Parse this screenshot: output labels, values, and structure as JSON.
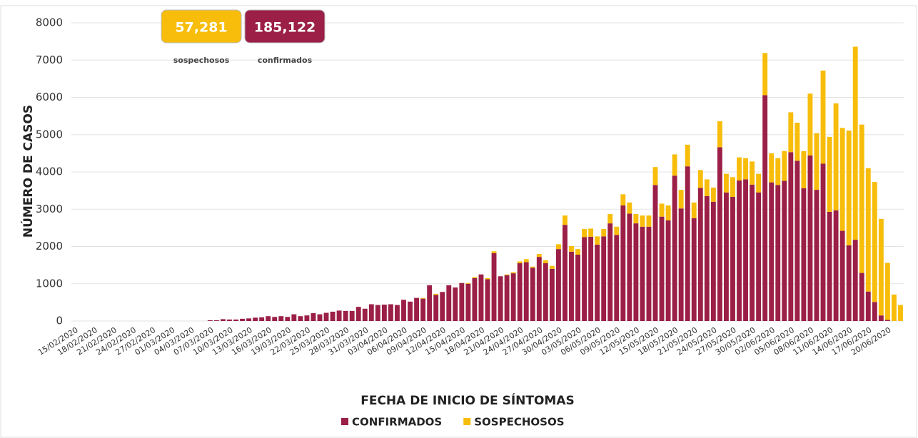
{
  "chart_data": {
    "type": "stacked_bar",
    "y_label": "NÚMERO DE CASOS",
    "x_label": "FECHA DE INICIO DE SÍNTOMAS",
    "ylim": [
      0,
      8000
    ],
    "yticks": [
      0,
      1000,
      2000,
      3000,
      4000,
      5000,
      6000,
      7000,
      8000
    ],
    "grid": true,
    "legend": "bottom",
    "categories": [
      "15/02/2020",
      null,
      null,
      "18/02/2020",
      null,
      null,
      "21/02/2020",
      null,
      null,
      "24/02/2020",
      null,
      null,
      "27/02/2020",
      null,
      null,
      "01/03/2020",
      null,
      null,
      "04/03/2020",
      null,
      null,
      "07/03/2020",
      null,
      null,
      "10/03/2020",
      null,
      null,
      "13/03/2020",
      null,
      null,
      "16/03/2020",
      null,
      null,
      "19/03/2020",
      null,
      null,
      "22/03/2020",
      null,
      null,
      "25/03/2020",
      null,
      null,
      "28/03/2020",
      null,
      null,
      "31/03/2020",
      null,
      null,
      "03/04/2020",
      null,
      null,
      "06/04/2020",
      null,
      null,
      "09/04/2020",
      null,
      null,
      "12/04/2020",
      null,
      null,
      "15/04/2020",
      null,
      null,
      "18/04/2020",
      null,
      null,
      "21/04/2020",
      null,
      null,
      "24/04/2020",
      null,
      null,
      "27/04/2020",
      null,
      null,
      "30/04/2020",
      null,
      null,
      "03/05/2020",
      null,
      null,
      "06/05/2020",
      null,
      null,
      "09/05/2020",
      null,
      null,
      "12/05/2020",
      null,
      null,
      "15/05/2020",
      null,
      null,
      "18/05/2020",
      null,
      null,
      "21/05/2020",
      null,
      null,
      "24/05/2020",
      null,
      null,
      "27/05/2020",
      null,
      null,
      "30/05/2020",
      null,
      null,
      "02/06/2020",
      null,
      null,
      "05/06/2020",
      null,
      null,
      "08/06/2020",
      null,
      null,
      "11/06/2020",
      null,
      null,
      "14/06/2020",
      null,
      null,
      "17/06/2020",
      null,
      null,
      "20/06/2020",
      null,
      null
    ],
    "series": [
      {
        "name": "CONFIRMADOS",
        "color": "#9b1f46",
        "values": [
          0,
          0,
          0,
          0,
          0,
          0,
          0,
          0,
          0,
          0,
          0,
          0,
          0,
          0,
          0,
          0,
          0,
          0,
          0,
          0,
          0,
          20,
          20,
          50,
          40,
          40,
          60,
          70,
          90,
          100,
          130,
          110,
          130,
          110,
          180,
          130,
          150,
          210,
          180,
          220,
          250,
          280,
          270,
          270,
          380,
          330,
          450,
          430,
          440,
          450,
          430,
          570,
          520,
          620,
          600,
          960,
          700,
          780,
          960,
          900,
          1020,
          1000,
          1150,
          1250,
          1120,
          1820,
          1200,
          1230,
          1280,
          1550,
          1580,
          1430,
          1720,
          1550,
          1400,
          1930,
          2580,
          1860,
          1780,
          2250,
          2260,
          2050,
          2270,
          2620,
          2310,
          3100,
          2880,
          2620,
          2530,
          2530,
          3650,
          2800,
          2700,
          3900,
          3020,
          4150,
          2760,
          3570,
          3350,
          3200,
          4660,
          3450,
          3330,
          3770,
          3800,
          3660,
          3450,
          6060,
          3720,
          3650,
          3760,
          4530,
          4300,
          3560,
          4440,
          3520,
          4220,
          2930,
          2970,
          2420,
          2030,
          2180,
          1290,
          790,
          510,
          150,
          30,
          0,
          0
        ]
      },
      {
        "name": "SOSPECHOSOS",
        "color": "#f7bd0a",
        "values": [
          0,
          0,
          0,
          0,
          0,
          0,
          0,
          0,
          0,
          0,
          0,
          0,
          0,
          0,
          0,
          0,
          0,
          0,
          0,
          0,
          0,
          0,
          0,
          0,
          0,
          0,
          0,
          0,
          0,
          0,
          0,
          0,
          0,
          0,
          0,
          0,
          0,
          0,
          0,
          0,
          0,
          0,
          0,
          0,
          0,
          0,
          0,
          0,
          0,
          0,
          0,
          0,
          0,
          0,
          20,
          0,
          30,
          0,
          0,
          0,
          0,
          20,
          30,
          0,
          30,
          50,
          0,
          20,
          30,
          50,
          80,
          30,
          80,
          80,
          80,
          130,
          250,
          150,
          150,
          220,
          220,
          220,
          200,
          250,
          220,
          300,
          300,
          250,
          300,
          300,
          480,
          350,
          400,
          570,
          500,
          580,
          420,
          480,
          450,
          380,
          700,
          500,
          530,
          620,
          570,
          620,
          500,
          1130,
          780,
          720,
          800,
          1070,
          1020,
          1000,
          1660,
          1520,
          2500,
          2010,
          2870,
          2760,
          3080,
          5180,
          3980,
          3310,
          3220,
          2590,
          1530,
          710,
          430
        ]
      }
    ]
  },
  "summary_boxes": [
    {
      "value": "57,281",
      "label": "sospechosos",
      "color": "#f7bd0a"
    },
    {
      "value": "185,122",
      "label": "confirmados",
      "color": "#9b1f46"
    }
  ]
}
